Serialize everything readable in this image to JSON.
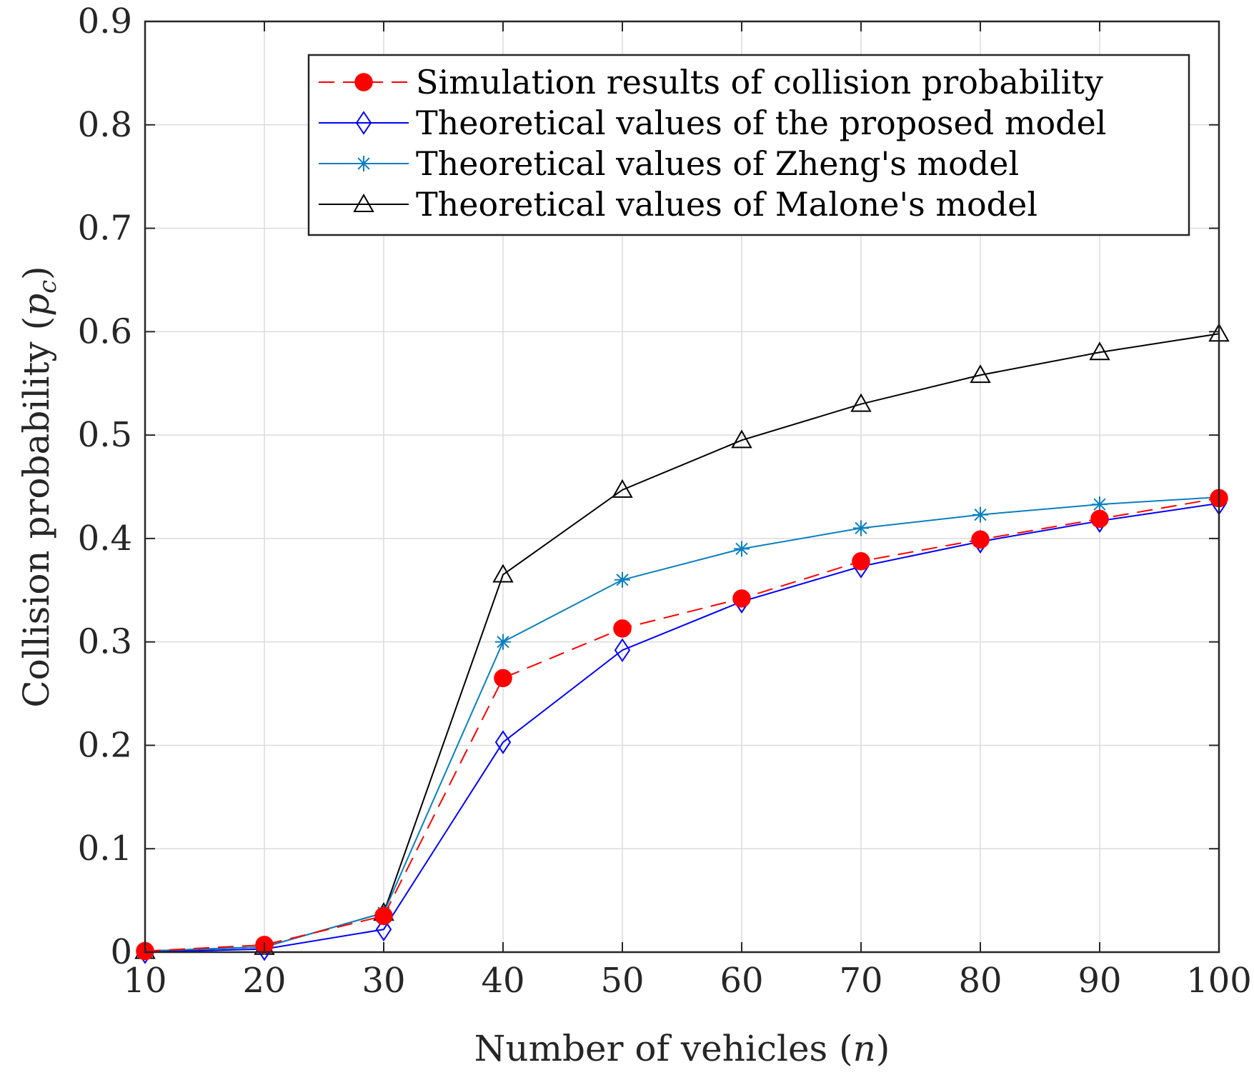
{
  "chart_data": {
    "type": "line",
    "title": "",
    "xlabel": "Number of vehicles",
    "xlabel_var": "n",
    "ylabel": "Collision probability",
    "ylabel_var": "p",
    "ylabel_sub": "c",
    "x": [
      10,
      20,
      30,
      40,
      50,
      60,
      70,
      80,
      90,
      100
    ],
    "xlim": [
      10,
      100
    ],
    "ylim": [
      0,
      0.9
    ],
    "xticks": [
      "10",
      "20",
      "30",
      "40",
      "50",
      "60",
      "70",
      "80",
      "90",
      "100"
    ],
    "yticks": [
      "0",
      "0.1",
      "0.2",
      "0.3",
      "0.4",
      "0.5",
      "0.6",
      "0.7",
      "0.8",
      "0.9"
    ],
    "grid": true,
    "legend_position": "top-right",
    "series": [
      {
        "name": "Simulation results of  collision probability",
        "color": "#ff0000",
        "marker": "filled-circle",
        "line_style": "dashed",
        "values": [
          0.001,
          0.007,
          0.035,
          0.265,
          0.313,
          0.342,
          0.378,
          0.399,
          0.419,
          0.439
        ]
      },
      {
        "name": "Theoretical values of the proposed model",
        "color": "#0000ff",
        "marker": "diamond",
        "line_style": "solid",
        "values": [
          0.0,
          0.003,
          0.022,
          0.203,
          0.292,
          0.339,
          0.373,
          0.397,
          0.417,
          0.434
        ]
      },
      {
        "name": "Theoretical values of Zheng's model",
        "color": "#0a7fc0",
        "marker": "asterisk",
        "line_style": "solid",
        "values": [
          0.001,
          0.005,
          0.038,
          0.3,
          0.36,
          0.39,
          0.41,
          0.423,
          0.433,
          0.44
        ]
      },
      {
        "name": "Theoretical values of Malone's model",
        "color": "#000000",
        "marker": "triangle",
        "line_style": "solid",
        "values": [
          0.001,
          0.005,
          0.038,
          0.365,
          0.447,
          0.495,
          0.53,
          0.558,
          0.58,
          0.598
        ]
      }
    ]
  }
}
